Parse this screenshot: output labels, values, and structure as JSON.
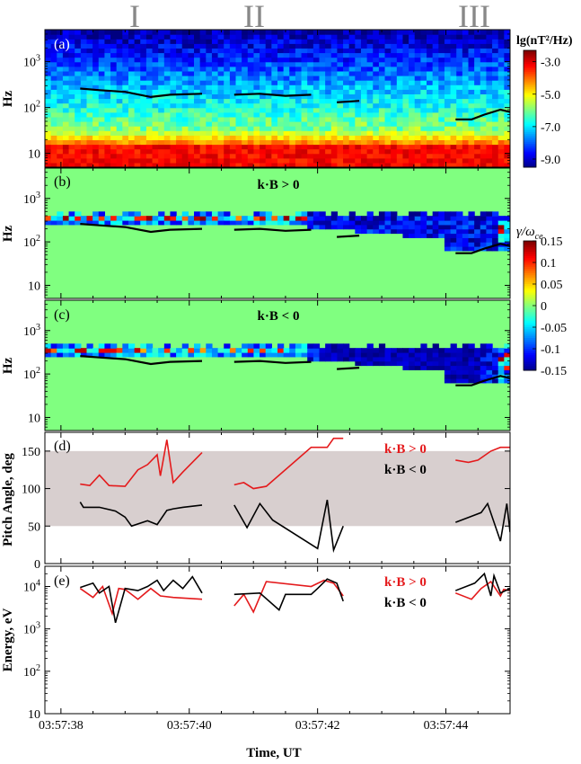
{
  "roman_labels": [
    "I",
    "II",
    "III"
  ],
  "time_axis": {
    "label": "Time, UT",
    "ticks": [
      "03:57:38",
      "03:57:40",
      "03:57:42",
      "03:57:44"
    ],
    "range": [
      37.75,
      45.0
    ]
  },
  "colorbars": {
    "spectrum": {
      "title": "lg(nT²/Hz)",
      "ticks": [
        "-3.0",
        "-5.0",
        "-7.0",
        "-9.0"
      ],
      "range": [
        -9.5,
        -2.3
      ]
    },
    "growth": {
      "title_main": "γ/ω",
      "title_sub": "ce",
      "ticks": [
        "0.15",
        "0.1",
        "0.05",
        "0",
        "-0.05",
        "-0.1",
        "-0.15"
      ],
      "range": [
        -0.15,
        0.15
      ]
    }
  },
  "chart_data": [
    {
      "panel": "(a)",
      "type": "heatmap",
      "ylabel": "Hz",
      "yscale": "log",
      "ylim": [
        5,
        5000
      ],
      "yticks": [
        {
          "v": 1000,
          "base": "10",
          "exp": "3"
        },
        {
          "v": 100,
          "base": "10",
          "exp": "2"
        },
        {
          "v": 10,
          "base": "10",
          "exp": ""
        }
      ],
      "description_values": "Power spectral density strongest (-3) below ~30 Hz, weakening to ~-8 above 300 Hz",
      "lines": [
        {
          "x": [
            38.3,
            38.6,
            39.0,
            39.4,
            39.7,
            40.2
          ],
          "y": [
            260,
            240,
            220,
            170,
            190,
            200
          ]
        },
        {
          "x": [
            40.7,
            41.1,
            41.5,
            41.9
          ],
          "y": [
            190,
            200,
            180,
            190
          ]
        },
        {
          "x": [
            42.3,
            42.65
          ],
          "y": [
            130,
            140
          ]
        },
        {
          "x": [
            44.15,
            44.4,
            44.6,
            44.85,
            45.0
          ],
          "y": [
            55,
            55,
            70,
            90,
            80
          ]
        }
      ]
    },
    {
      "panel": "(b)",
      "type": "heatmap",
      "title": "k·B > 0",
      "ylabel": "Hz",
      "yscale": "log",
      "ylim": [
        5,
        5000
      ],
      "yticks": [
        {
          "v": 1000,
          "base": "10",
          "exp": "3"
        },
        {
          "v": 100,
          "base": "10",
          "exp": "2"
        },
        {
          "v": 10,
          "base": "10",
          "exp": ""
        }
      ],
      "lines": [
        {
          "x": [
            38.3,
            38.6,
            39.0,
            39.4,
            39.7,
            40.2
          ],
          "y": [
            260,
            240,
            220,
            170,
            190,
            200
          ]
        },
        {
          "x": [
            40.7,
            41.1,
            41.5,
            41.9
          ],
          "y": [
            190,
            200,
            180,
            190
          ]
        },
        {
          "x": [
            42.3,
            42.65
          ],
          "y": [
            130,
            140
          ]
        },
        {
          "x": [
            44.15,
            44.4,
            44.6,
            44.85,
            45.0
          ],
          "y": [
            55,
            55,
            70,
            90,
            80
          ]
        }
      ]
    },
    {
      "panel": "(c)",
      "type": "heatmap",
      "title": "k·B < 0",
      "ylabel": "Hz",
      "yscale": "log",
      "ylim": [
        5,
        5000
      ],
      "yticks": [
        {
          "v": 1000,
          "base": "10",
          "exp": "3"
        },
        {
          "v": 100,
          "base": "10",
          "exp": "2"
        },
        {
          "v": 10,
          "base": "10",
          "exp": ""
        }
      ],
      "lines": [
        {
          "x": [
            38.3,
            38.6,
            39.0,
            39.4,
            39.7,
            40.2
          ],
          "y": [
            260,
            240,
            220,
            170,
            190,
            200
          ]
        },
        {
          "x": [
            40.7,
            41.1,
            41.5,
            41.9
          ],
          "y": [
            190,
            200,
            180,
            190
          ]
        },
        {
          "x": [
            42.3,
            42.65
          ],
          "y": [
            130,
            140
          ]
        },
        {
          "x": [
            44.15,
            44.4,
            44.6,
            44.85,
            45.0
          ],
          "y": [
            55,
            55,
            70,
            90,
            80
          ]
        }
      ]
    },
    {
      "panel": "(d)",
      "type": "line",
      "ylabel": "Pitch Angle, deg",
      "ylim": [
        0,
        175
      ],
      "yticks": [
        0,
        50,
        100,
        150
      ],
      "shade": [
        50,
        150
      ],
      "legend": [
        "k·B > 0",
        "k·B < 0"
      ],
      "series": [
        {
          "name": "k·B > 0",
          "color": "#e41a1c",
          "segments": [
            {
              "x": [
                38.3,
                38.45,
                38.6,
                38.75,
                39.0,
                39.2,
                39.35,
                39.5,
                39.55,
                39.65,
                39.75,
                39.9,
                40.2
              ],
              "y": [
                106,
                104,
                118,
                104,
                103,
                125,
                132,
                145,
                117,
                165,
                108,
                122,
                148
              ]
            },
            {
              "x": [
                40.7,
                40.85,
                41.0,
                41.2,
                41.9,
                42.15,
                42.25,
                42.4
              ],
              "y": [
                105,
                108,
                100,
                103,
                155,
                155,
                167,
                167
              ]
            },
            {
              "x": [
                44.15,
                44.35,
                44.5,
                44.7,
                44.85,
                45.0
              ],
              "y": [
                138,
                135,
                138,
                150,
                155,
                155
              ]
            }
          ]
        },
        {
          "name": "k·B < 0",
          "color": "#000000",
          "segments": [
            {
              "x": [
                38.3,
                38.35,
                38.6,
                38.85,
                39.0,
                39.1,
                39.35,
                39.5,
                39.65,
                39.75,
                39.9,
                40.2
              ],
              "y": [
                82,
                75,
                75,
                70,
                62,
                50,
                57,
                52,
                71,
                73,
                75,
                78
              ]
            },
            {
              "x": [
                40.7,
                40.9,
                41.1,
                41.3,
                42.0,
                42.15,
                42.25,
                42.4
              ],
              "y": [
                78,
                48,
                80,
                58,
                20,
                85,
                18,
                50
              ]
            },
            {
              "x": [
                44.15,
                44.4,
                44.55,
                44.65,
                44.85,
                44.95,
                45.0
              ],
              "y": [
                55,
                63,
                68,
                80,
                30,
                80,
                42
              ]
            }
          ]
        }
      ]
    },
    {
      "panel": "(e)",
      "type": "line",
      "ylabel": "Energy, eV",
      "yscale": "log",
      "ylim": [
        10,
        30000
      ],
      "yticks": [
        {
          "v": 10000,
          "base": "10",
          "exp": "4"
        },
        {
          "v": 1000,
          "base": "10",
          "exp": "3"
        },
        {
          "v": 100,
          "base": "10",
          "exp": "2"
        },
        {
          "v": 10,
          "base": "10",
          "exp": ""
        }
      ],
      "legend": [
        "k·B > 0",
        "k·B < 0"
      ],
      "series": [
        {
          "name": "k·B > 0",
          "color": "#e41a1c",
          "segments": [
            {
              "x": [
                38.3,
                38.5,
                38.65,
                38.8,
                38.9,
                39.0,
                39.2,
                39.4,
                39.55,
                39.75,
                40.2
              ],
              "y": [
                9000,
                5500,
                10000,
                2300,
                9000,
                8500,
                5000,
                9000,
                6000,
                5500,
                5000
              ]
            },
            {
              "x": [
                40.7,
                40.85,
                41.0,
                41.2,
                41.9,
                42.1,
                42.25,
                42.4
              ],
              "y": [
                3500,
                6500,
                2500,
                13000,
                10000,
                14000,
                12000,
                6000
              ]
            },
            {
              "x": [
                44.15,
                44.4,
                44.55,
                44.7,
                44.85,
                44.9,
                45.0
              ],
              "y": [
                7000,
                5000,
                9000,
                13000,
                6000,
                8500,
                8000
              ]
            }
          ]
        },
        {
          "name": "k·B < 0",
          "color": "#000000",
          "segments": [
            {
              "x": [
                38.3,
                38.5,
                38.6,
                38.75,
                38.85,
                39.0,
                39.2,
                39.35,
                39.5,
                39.6,
                39.75,
                39.9,
                40.05,
                40.2
              ],
              "y": [
                9500,
                12000,
                7000,
                10000,
                1400,
                9000,
                8000,
                10000,
                14000,
                8000,
                14000,
                9000,
                17000,
                7000
              ]
            },
            {
              "x": [
                40.7,
                41.1,
                41.4,
                41.5,
                41.9,
                42.0,
                42.15,
                42.3,
                42.4
              ],
              "y": [
                6500,
                7000,
                2800,
                6500,
                6500,
                9000,
                15000,
                12000,
                4500
              ]
            },
            {
              "x": [
                44.15,
                44.45,
                44.6,
                44.7,
                44.75,
                44.85,
                45.0
              ],
              "y": [
                8000,
                12000,
                20000,
                6000,
                18000,
                7000,
                9000
              ]
            }
          ]
        }
      ]
    }
  ]
}
